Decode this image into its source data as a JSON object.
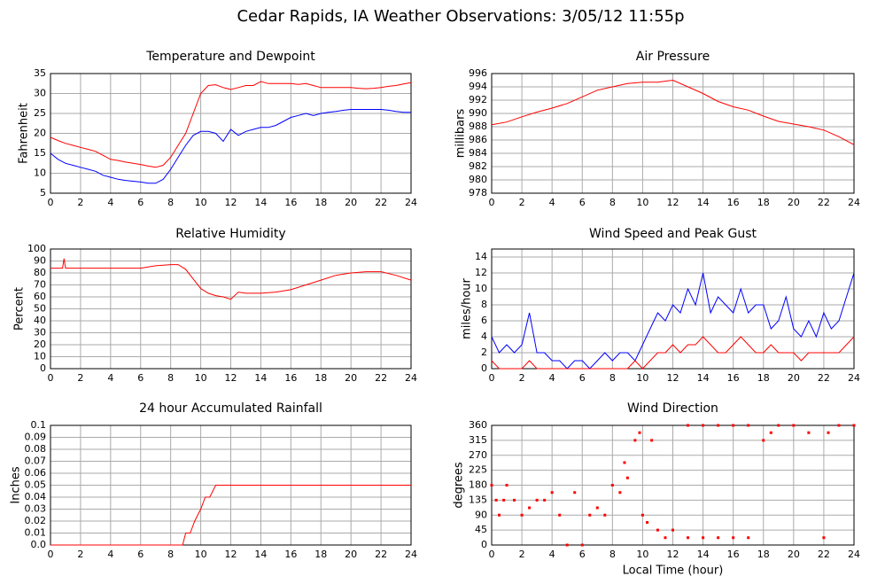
{
  "title": "Cedar Rapids, IA Weather Observations: 3/05/12 11:55p",
  "chart_data": [
    {
      "type": "line",
      "title": "Temperature and Dewpoint",
      "ylabel": "Fahrenheit",
      "x": [
        0,
        0.5,
        1,
        1.5,
        2,
        2.5,
        3,
        3.5,
        4,
        4.5,
        5,
        5.5,
        6,
        6.5,
        7,
        7.5,
        8,
        8.5,
        9,
        9.5,
        10,
        10.5,
        11,
        11.5,
        12,
        12.5,
        13,
        13.5,
        14,
        14.5,
        15,
        15.5,
        16,
        16.5,
        17,
        17.5,
        18,
        18.5,
        19,
        19.5,
        20,
        20.5,
        21,
        21.5,
        22,
        22.5,
        23,
        23.5,
        24
      ],
      "series": [
        {
          "color": "#ff0000",
          "values": [
            19,
            18.2,
            17.5,
            17,
            16.5,
            16,
            15.5,
            14.5,
            13.5,
            13.2,
            12.8,
            12.5,
            12.2,
            11.8,
            11.5,
            12,
            14,
            17,
            20,
            25,
            30,
            32,
            32.2,
            31.5,
            31,
            31.5,
            32,
            32,
            33,
            32.5,
            32.5,
            32.5,
            32.5,
            32.3,
            32.5,
            32,
            31.5,
            31.5,
            31.5,
            31.5,
            31.5,
            31.3,
            31.2,
            31.3,
            31.5,
            31.8,
            32,
            32.4,
            32.7
          ]
        },
        {
          "color": "#0000ff",
          "values": [
            15,
            13.5,
            12.5,
            12,
            11.5,
            11,
            10.5,
            9.5,
            9,
            8.5,
            8.2,
            8,
            7.8,
            7.5,
            7.5,
            8.5,
            11,
            14,
            17,
            19.5,
            20.5,
            20.5,
            20,
            18,
            21,
            19.5,
            20.5,
            21,
            21.5,
            21.5,
            22,
            23,
            24,
            24.5,
            25,
            24.5,
            25,
            25.3,
            25.5,
            25.8,
            26,
            26,
            26,
            26,
            26,
            25.8,
            25.5,
            25.3,
            25.3
          ]
        }
      ],
      "xlim": [
        0,
        24
      ],
      "xticks": [
        0,
        2,
        4,
        6,
        8,
        10,
        12,
        14,
        16,
        18,
        20,
        22,
        24
      ],
      "ylim": [
        5,
        35
      ],
      "yticks": [
        5,
        10,
        15,
        20,
        25,
        30,
        35
      ],
      "grid": true
    },
    {
      "type": "line",
      "title": "Air Pressure",
      "ylabel": "millibars",
      "x": [
        0,
        1,
        2,
        3,
        4,
        5,
        6,
        7,
        8,
        9,
        10,
        11,
        12,
        13,
        14,
        15,
        16,
        17,
        18,
        19,
        20,
        21,
        22,
        23,
        24
      ],
      "series": [
        {
          "color": "#ff0000",
          "values": [
            988.3,
            988.7,
            989.5,
            990.2,
            990.8,
            991.5,
            992.5,
            993.5,
            994,
            994.5,
            994.7,
            994.7,
            995,
            994,
            993,
            991.8,
            991,
            990.5,
            989.6,
            988.8,
            988.4,
            988,
            987.5,
            986.5,
            985.3
          ]
        }
      ],
      "xlim": [
        0,
        24
      ],
      "xticks": [
        0,
        2,
        4,
        6,
        8,
        10,
        12,
        14,
        16,
        18,
        20,
        22,
        24
      ],
      "ylim": [
        978,
        996
      ],
      "yticks": [
        978,
        980,
        982,
        984,
        986,
        988,
        990,
        992,
        994,
        996
      ],
      "grid": true
    },
    {
      "type": "line",
      "title": "Relative Humidity",
      "ylabel": "Percent",
      "x": [
        0,
        0.8,
        0.9,
        1,
        2,
        3,
        4,
        5,
        6,
        7,
        8,
        8.5,
        9,
        9.5,
        10,
        10.5,
        11,
        11.5,
        12,
        12.5,
        13,
        14,
        15,
        16,
        17,
        18,
        19,
        20,
        21,
        22,
        23,
        24
      ],
      "series": [
        {
          "color": "#ff0000",
          "values": [
            84,
            84,
            92,
            84,
            84,
            84,
            84,
            84,
            84,
            86,
            87,
            87,
            83,
            75,
            67,
            63,
            61,
            60,
            58,
            64,
            63,
            63,
            64,
            66,
            70,
            74,
            78,
            80,
            81,
            81,
            78,
            74
          ]
        }
      ],
      "xlim": [
        0,
        24
      ],
      "xticks": [
        0,
        2,
        4,
        6,
        8,
        10,
        12,
        14,
        16,
        18,
        20,
        22,
        24
      ],
      "ylim": [
        0,
        100
      ],
      "yticks": [
        0,
        10,
        20,
        30,
        40,
        50,
        60,
        70,
        80,
        90,
        100
      ],
      "grid": true
    },
    {
      "type": "line",
      "title": "Wind Speed and Peak Gust",
      "ylabel": "miles/hour",
      "x": [
        0,
        0.5,
        1,
        1.5,
        2,
        2.5,
        3,
        3.5,
        4,
        4.5,
        5,
        5.5,
        6,
        6.5,
        7,
        7.5,
        8,
        8.5,
        9,
        9.5,
        10,
        10.5,
        11,
        11.5,
        12,
        12.5,
        13,
        13.5,
        14,
        14.5,
        15,
        15.5,
        16,
        16.5,
        17,
        17.5,
        18,
        18.5,
        19,
        19.5,
        20,
        20.5,
        21,
        21.5,
        22,
        22.5,
        23,
        23.5,
        24
      ],
      "series": [
        {
          "color": "#0000ff",
          "values": [
            4,
            2,
            3,
            2,
            3,
            7,
            2,
            2,
            1,
            1,
            0,
            1,
            1,
            0,
            1,
            2,
            1,
            2,
            2,
            1,
            3,
            5,
            7,
            6,
            8,
            7,
            10,
            8,
            12,
            7,
            9,
            8,
            7,
            10,
            7,
            8,
            8,
            5,
            6,
            9,
            5,
            4,
            6,
            4,
            7,
            5,
            6,
            9,
            12
          ]
        },
        {
          "color": "#ff0000",
          "values": [
            1,
            0,
            0,
            0,
            0,
            1,
            0,
            0,
            0,
            0,
            0,
            0,
            0,
            0,
            0,
            0,
            0,
            0,
            0,
            1,
            0,
            1,
            2,
            2,
            3,
            2,
            3,
            3,
            4,
            3,
            2,
            2,
            3,
            4,
            3,
            2,
            2,
            3,
            2,
            2,
            2,
            1,
            2,
            2,
            2,
            2,
            2,
            3,
            4
          ]
        }
      ],
      "xlim": [
        0,
        24
      ],
      "xticks": [
        0,
        2,
        4,
        6,
        8,
        10,
        12,
        14,
        16,
        18,
        20,
        22,
        24
      ],
      "ylim": [
        0,
        15
      ],
      "yticks": [
        0,
        2,
        4,
        6,
        8,
        10,
        12,
        14
      ],
      "grid": true
    },
    {
      "type": "line",
      "title": "24 hour Accumulated Rainfall",
      "ylabel": "Inches",
      "x": [
        0,
        8.8,
        9,
        9.3,
        9.6,
        10,
        10.3,
        10.6,
        11,
        24
      ],
      "series": [
        {
          "color": "#ff0000",
          "values": [
            0,
            0,
            0.01,
            0.01,
            0.02,
            0.03,
            0.04,
            0.04,
            0.05,
            0.05
          ]
        }
      ],
      "xlim": [
        0,
        24
      ],
      "xticks": [
        0,
        2,
        4,
        6,
        8,
        10,
        12,
        14,
        16,
        18,
        20,
        22,
        24
      ],
      "ylim": [
        0,
        0.1
      ],
      "yticks": [
        {
          "value": 0,
          "label": "0.0"
        },
        0.01,
        0.02,
        0.03,
        0.04,
        0.05,
        0.06,
        0.07,
        0.08,
        0.09,
        0.1
      ],
      "grid": true
    },
    {
      "type": "scatter",
      "title": "Wind Direction",
      "ylabel": "degrees",
      "xlabel": "Local Time (hour)",
      "x": [
        0,
        0.3,
        0.5,
        0.8,
        1,
        1.5,
        2,
        2.5,
        3,
        3.5,
        4,
        4.5,
        5,
        5.5,
        6,
        6.5,
        7,
        7.5,
        8,
        8.5,
        8.8,
        9,
        9.5,
        9.8,
        10,
        10.3,
        10.6,
        11,
        11.5,
        12,
        13,
        14,
        15,
        16,
        17,
        13,
        14,
        15,
        16,
        17,
        18,
        18.5,
        19,
        20,
        21,
        22,
        22.3,
        23,
        24
      ],
      "series": [
        {
          "color": "#ff0000",
          "values": [
            180,
            135,
            90,
            135,
            180,
            135,
            90,
            112,
            135,
            135,
            158,
            90,
            0,
            158,
            0,
            90,
            112,
            90,
            180,
            158,
            248,
            202,
            315,
            338,
            90,
            68,
            315,
            45,
            22,
            45,
            22,
            22,
            22,
            22,
            22,
            360,
            360,
            360,
            360,
            360,
            315,
            338,
            360,
            360,
            338,
            22,
            338,
            360,
            360
          ]
        }
      ],
      "xlim": [
        0,
        24
      ],
      "xticks": [
        0,
        2,
        4,
        6,
        8,
        10,
        12,
        14,
        16,
        18,
        20,
        22,
        24
      ],
      "ylim": [
        0,
        360
      ],
      "yticks": [
        0,
        45,
        90,
        135,
        180,
        225,
        270,
        315,
        360
      ],
      "grid": true
    }
  ]
}
